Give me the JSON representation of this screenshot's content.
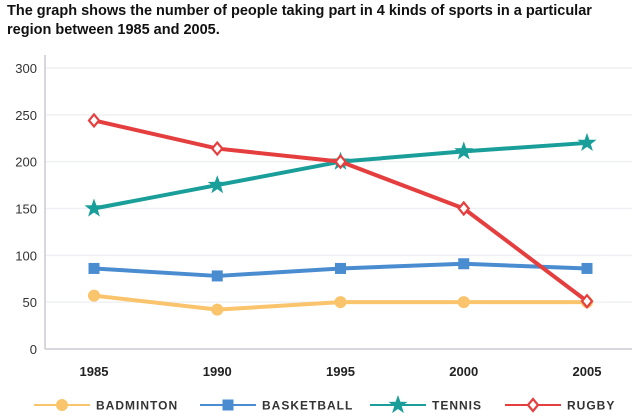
{
  "chart_data": {
    "type": "line",
    "title": "The graph shows the number of people taking part in 4 kinds of sports in a particular region between 1985 and 2005.",
    "xlabel": "",
    "ylabel": "",
    "categories": [
      "1985",
      "1990",
      "1995",
      "2000",
      "2005"
    ],
    "ylim": [
      0,
      300
    ],
    "yticks": [
      "0",
      "50",
      "100",
      "150",
      "200",
      "250",
      "300"
    ],
    "grid": true,
    "legend_position": "bottom",
    "series": [
      {
        "name": "BADMINTON",
        "color": "#f9c46b",
        "marker": "circle",
        "values": [
          57,
          42,
          50,
          50,
          50
        ]
      },
      {
        "name": "BASKETBALL",
        "color": "#4a8cd0",
        "marker": "square",
        "values": [
          86,
          78,
          86,
          91,
          86
        ]
      },
      {
        "name": "TENNIS",
        "color": "#1a9e9a",
        "marker": "star",
        "values": [
          150,
          175,
          200,
          211,
          220
        ]
      },
      {
        "name": "RUGBY",
        "color": "#e53e3e",
        "marker": "diamond",
        "values": [
          244,
          214,
          200,
          150,
          51
        ]
      }
    ]
  }
}
